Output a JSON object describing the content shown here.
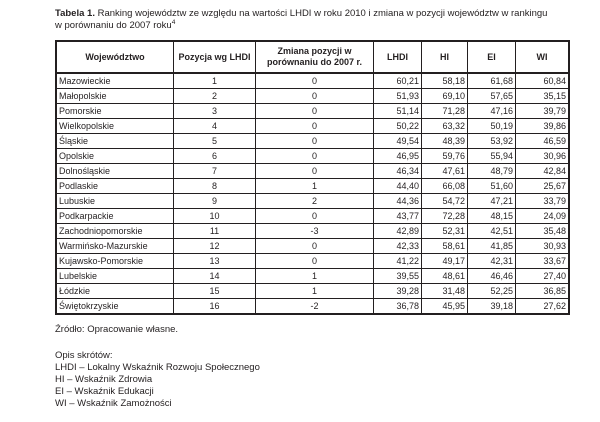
{
  "title": {
    "label": "Tabela 1.",
    "text": "Ranking województw ze względu na wartości LHDI w roku 2010 i zmiana w pozycji województw w rankingu w porównaniu do 2007 roku",
    "superscript": "4"
  },
  "table": {
    "headers": [
      "Województwo",
      "Pozycja wg LHDI",
      "Zmiana pozycji w porównaniu do 2007 r.",
      "LHDI",
      "HI",
      "EI",
      "WI"
    ],
    "rows": [
      [
        "Mazowieckie",
        "1",
        "0",
        "60,21",
        "58,18",
        "61,68",
        "60,84"
      ],
      [
        "Małopolskie",
        "2",
        "0",
        "51,93",
        "69,10",
        "57,65",
        "35,15"
      ],
      [
        "Pomorskie",
        "3",
        "0",
        "51,14",
        "71,28",
        "47,16",
        "39,79"
      ],
      [
        "Wielkopolskie",
        "4",
        "0",
        "50,22",
        "63,32",
        "50,19",
        "39,86"
      ],
      [
        "Śląskie",
        "5",
        "0",
        "49,54",
        "48,39",
        "53,92",
        "46,59"
      ],
      [
        "Opolskie",
        "6",
        "0",
        "46,95",
        "59,76",
        "55,94",
        "30,96"
      ],
      [
        "Dolnośląskie",
        "7",
        "0",
        "46,34",
        "47,61",
        "48,79",
        "42,84"
      ],
      [
        "Podlaskie",
        "8",
        "1",
        "44,40",
        "66,08",
        "51,60",
        "25,67"
      ],
      [
        "Lubuskie",
        "9",
        "2",
        "44,36",
        "54,72",
        "47,21",
        "33,79"
      ],
      [
        "Podkarpackie",
        "10",
        "0",
        "43,77",
        "72,28",
        "48,15",
        "24,09"
      ],
      [
        "Zachodniopomorskie",
        "11",
        "-3",
        "42,89",
        "52,31",
        "42,51",
        "35,48"
      ],
      [
        "Warmińsko-Mazurskie",
        "12",
        "0",
        "42,33",
        "58,61",
        "41,85",
        "30,93"
      ],
      [
        "Kujawsko-Pomorskie",
        "13",
        "0",
        "41,22",
        "49,17",
        "42,31",
        "33,67"
      ],
      [
        "Lubelskie",
        "14",
        "1",
        "39,55",
        "48,61",
        "46,46",
        "27,40"
      ],
      [
        "Łódzkie",
        "15",
        "1",
        "39,28",
        "31,48",
        "52,25",
        "36,85"
      ],
      [
        "Świętokrzyskie",
        "16",
        "-2",
        "36,78",
        "45,95",
        "39,18",
        "27,62"
      ]
    ]
  },
  "footer": {
    "source": "Źródło: Opracowanie własne.",
    "abbr_title": "Opis skrótów:",
    "abbreviations": [
      "LHDI – Lokalny Wskaźnik Rozwoju Społecznego",
      "HI – Wskaźnik Zdrowia",
      "EI – Wskaźnik Edukacji",
      "WI – Wskaźnik Zamożności"
    ]
  },
  "colors": {
    "text": "#231f20",
    "border": "#231f20",
    "background": "#ffffff"
  }
}
